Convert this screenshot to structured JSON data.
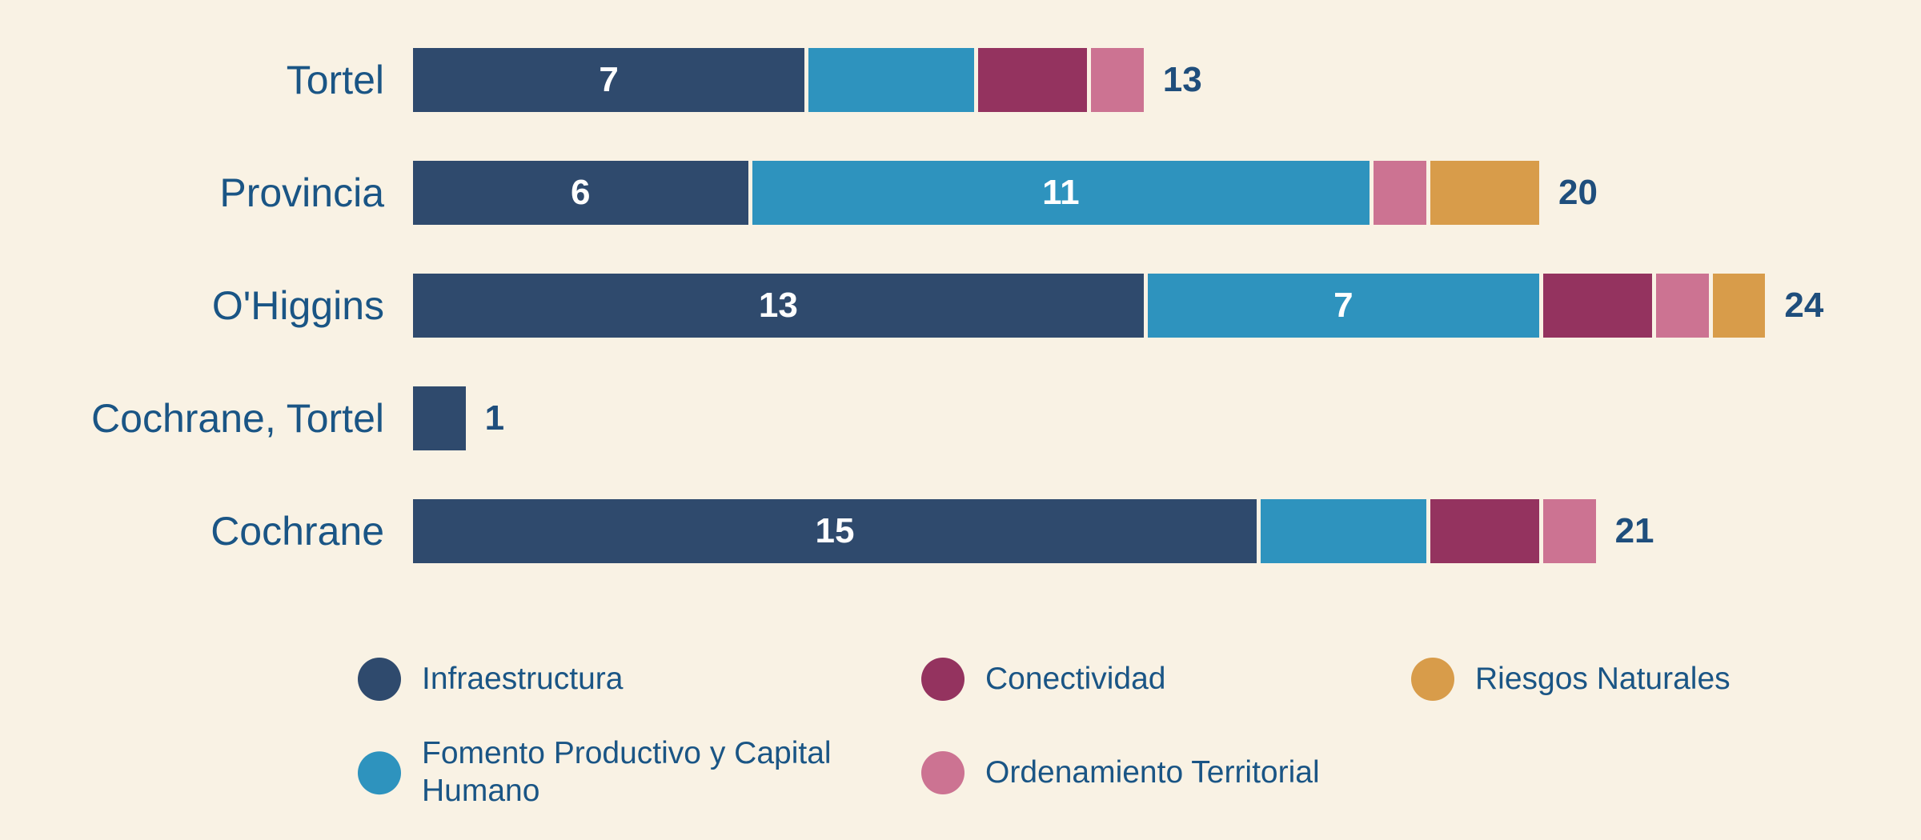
{
  "colors": {
    "background": "#F9F2E4",
    "row_label": "#1A5585",
    "total_label": "#1F4E7C",
    "bar_value_label": "#FFFFFF"
  },
  "chart_data": {
    "type": "bar",
    "orientation": "horizontal",
    "stacked": true,
    "grid": false,
    "axes_shown": false,
    "categories": [
      "Tortel",
      "Provincia",
      "O'Higgins",
      "Cochrane, Tortel",
      "Cochrane"
    ],
    "series": [
      {
        "name": "Infraestructura",
        "color": "#2F4A6D",
        "values": [
          7,
          6,
          13,
          1,
          15
        ]
      },
      {
        "name": "Fomento Productivo y Capital Humano",
        "color": "#2E93BE",
        "values": [
          3,
          11,
          7,
          0,
          3
        ]
      },
      {
        "name": "Conectividad",
        "color": "#94335F",
        "values": [
          2,
          0,
          2,
          0,
          2
        ]
      },
      {
        "name": "Ordenamiento Territorial",
        "color": "#CC7392",
        "values": [
          1,
          1,
          1,
          0,
          1
        ]
      },
      {
        "name": "Riesgos Naturales",
        "color": "#D89C4A",
        "values": [
          0,
          2,
          1,
          0,
          0
        ]
      }
    ],
    "totals": [
      13,
      20,
      24,
      1,
      21
    ],
    "segment_labels_shown_min_value": 6,
    "xlim": [
      0,
      24
    ],
    "legend_position": "bottom",
    "legend_rows": [
      [
        "Infraestructura",
        "Conectividad",
        "Riesgos Naturales"
      ],
      [
        "Fomento Productivo y Capital Humano",
        "Ordenamiento Territorial"
      ]
    ]
  }
}
